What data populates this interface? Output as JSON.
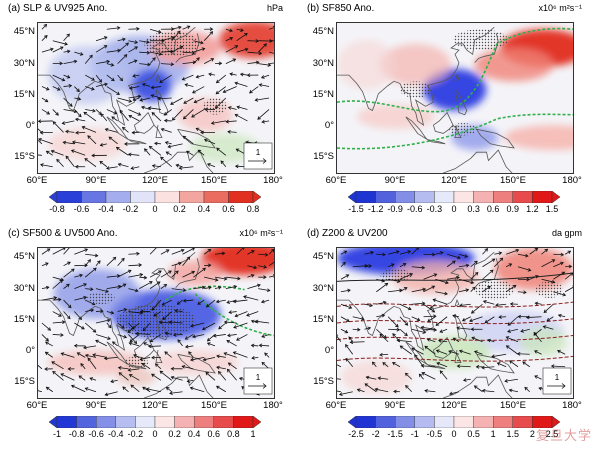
{
  "panels": [
    {
      "title": "(a) SLP & UV925 Ano.",
      "unit": "hPa",
      "cbar_ticks": [
        "-0.8",
        "-0.6",
        "-0.4",
        "-0.2",
        "0",
        "0.2",
        "0.4",
        "0.6",
        "0.8"
      ],
      "ref_vector": "1"
    },
    {
      "title": "(b) SF850 Ano.",
      "unit": "x10⁶ m²s⁻¹",
      "cbar_ticks": [
        "-1.5",
        "-1.2",
        "-0.9",
        "-0.6",
        "-0.3",
        "0",
        "0.3",
        "0.6",
        "0.9",
        "1.2",
        "1.5"
      ],
      "ref_vector": ""
    },
    {
      "title": "(c) SF500 & UV500 Ano.",
      "unit": "x10⁶ m²s⁻¹",
      "cbar_ticks": [
        "-1",
        "-0.8",
        "-0.6",
        "-0.4",
        "-0.2",
        "0",
        "0.2",
        "0.4",
        "0.6",
        "0.8",
        "1"
      ],
      "ref_vector": "1"
    },
    {
      "title": "(d) Z200 & UV200",
      "unit": "da gpm",
      "cbar_ticks": [
        "-2.5",
        "-2",
        "-1.5",
        "-1",
        "-0.5",
        "0",
        "0.5",
        "1",
        "1.5",
        "2",
        "2.5"
      ],
      "ref_vector": "1"
    }
  ],
  "lat_labels": [
    "45°N",
    "30°N",
    "15°N",
    "0°",
    "15°S"
  ],
  "lon_labels": [
    "60°E",
    "90°E",
    "120°E",
    "150°E",
    "180°"
  ],
  "colors": {
    "blue_max": "#1c2fd6",
    "red_max": "#e01010",
    "green": "#8bd16a",
    "stipple": "#c9a03a",
    "contour_green": "#2fb04a",
    "coast": "#555555"
  },
  "watermark": "复旦大学"
}
